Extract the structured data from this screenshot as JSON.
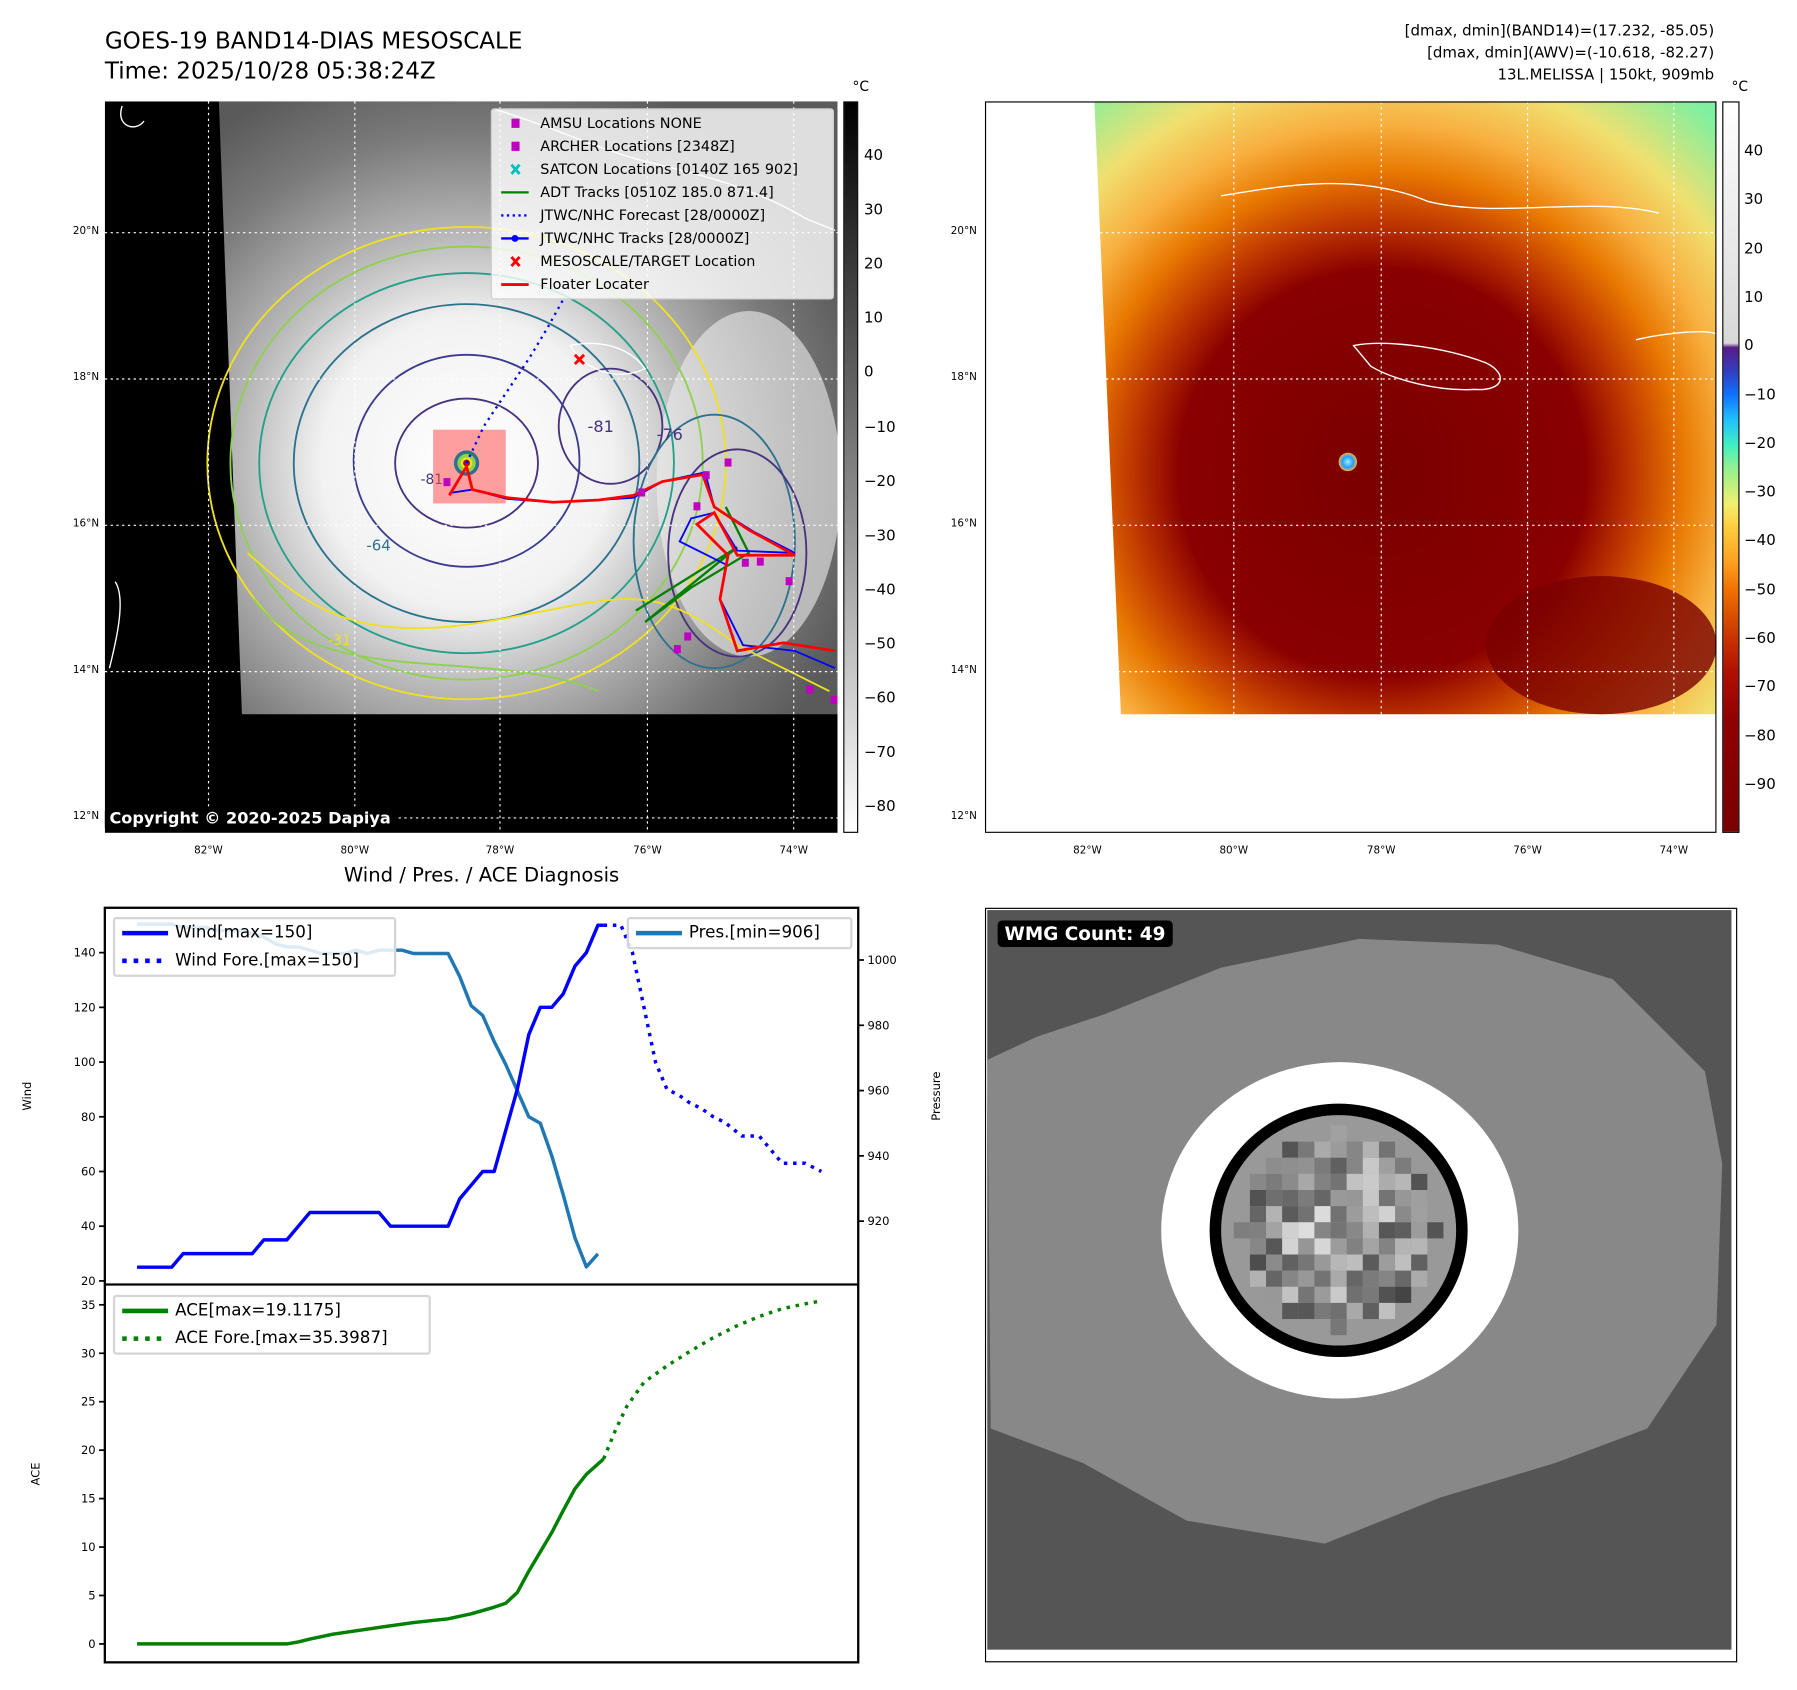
{
  "header": {
    "title": "GOES-19 BAND14-DIAS MESOSCALE",
    "time": "Time: 2025/10/28 05:38:24Z",
    "stats": [
      "[dmax, dmin](BAND14)=(17.232, -85.05)",
      "[dmax, dmin](AWV)=(-10.618, -82.27)",
      "13L.MELISSA | 150kt, 909mb"
    ]
  },
  "map_left": {
    "unit": "°C",
    "legend": [
      {
        "label": "AMSU Locations NONE",
        "marker": "square",
        "color": "#c000c0"
      },
      {
        "label": "ARCHER Locations [2348Z]",
        "marker": "square",
        "color": "#c000c0"
      },
      {
        "label": "SATCON Locations [0140Z 165 902]",
        "marker": "x",
        "color": "#00bfbf"
      },
      {
        "label": "ADT Tracks [0510Z 185.0 871.4]",
        "marker": "line",
        "color": "#008000"
      },
      {
        "label": "JTWC/NHC Forecast [28/0000Z]",
        "marker": "dotted",
        "color": "#0000ff"
      },
      {
        "label": "JTWC/NHC Tracks [28/0000Z]",
        "marker": "line-dot",
        "color": "#0000ff"
      },
      {
        "label": "MESOSCALE/TARGET Location",
        "marker": "x",
        "color": "#ff0000"
      },
      {
        "label": "Floater Locater",
        "marker": "line",
        "color": "#ff0000"
      }
    ],
    "contour_labels": [
      "-81",
      "-76",
      "-64",
      "-81",
      "-31"
    ],
    "copyright": "Copyright © 2020-2025 Dapiya",
    "lat_labels": [
      "20°N",
      "18°N",
      "16°N",
      "14°N",
      "12°N"
    ],
    "lon_labels": [
      "82°W",
      "80°W",
      "78°W",
      "76°W",
      "74°W"
    ],
    "colorbar_ticks": [
      "40",
      "30",
      "20",
      "10",
      "0",
      "−10",
      "−20",
      "−30",
      "−40",
      "−50",
      "−60",
      "−70",
      "−80"
    ]
  },
  "map_right": {
    "unit": "°C",
    "lat_labels": [
      "20°N",
      "18°N",
      "16°N",
      "14°N",
      "12°N"
    ],
    "lon_labels": [
      "82°W",
      "80°W",
      "78°W",
      "76°W",
      "74°W"
    ],
    "colorbar_ticks": [
      "40",
      "30",
      "20",
      "10",
      "0",
      "−10",
      "−20",
      "−30",
      "−40",
      "−50",
      "−60",
      "−70",
      "−80",
      "−90"
    ]
  },
  "wmg": {
    "label": "WMG Count: 49"
  },
  "colors": {
    "wind": "#0000ff",
    "pressure": "#1f77b4",
    "ace": "#008000",
    "floater": "#ff0000",
    "adt": "#008000",
    "archer": "#c000c0"
  },
  "chart_data": [
    {
      "type": "line",
      "title": "Wind / Pres. / ACE Diagnosis",
      "ylabel": "Wind",
      "y2label": "Pressure",
      "xlim": [
        -2.8,
        62.6
      ],
      "ylim": [
        18.7,
        156.4
      ],
      "y2lim": [
        900.6,
        1016
      ],
      "yticks": [
        20,
        40,
        60,
        80,
        100,
        120,
        140
      ],
      "y2ticks": [
        920,
        940,
        960,
        980,
        1000
      ],
      "legend_left": [
        "Wind[max=150]",
        "Wind Fore.[max=150]"
      ],
      "legend_right": [
        "Pres.[min=906]"
      ],
      "series": [
        {
          "name": "Wind[max=150]",
          "axis": "left",
          "style": "solid",
          "x": [
            0,
            1,
            2,
            3,
            4,
            5,
            6,
            7,
            8,
            9,
            10,
            11,
            12,
            13,
            14,
            15,
            16,
            17,
            18,
            19,
            20,
            21,
            22,
            23,
            24,
            25,
            26,
            27,
            28,
            29,
            30,
            31,
            32,
            33,
            34,
            35,
            36,
            37,
            38,
            39,
            40,
            40.5
          ],
          "y": [
            25,
            25,
            25,
            25,
            30,
            30,
            30,
            30,
            30,
            30,
            30,
            35,
            35,
            35,
            40,
            45,
            45,
            45,
            45,
            45,
            45,
            45,
            40,
            40,
            40,
            40,
            40,
            40,
            50,
            55,
            60,
            60,
            75,
            90,
            110,
            120,
            120,
            125,
            135,
            140,
            150,
            150
          ]
        },
        {
          "name": "Wind Fore.[max=150]",
          "axis": "left",
          "style": "dotted",
          "x": [
            40.5,
            42,
            43,
            44,
            45,
            46,
            47,
            48,
            49,
            50,
            51,
            52.5,
            54,
            55,
            56,
            58,
            59.4
          ],
          "y": [
            150,
            150,
            140,
            120,
            100,
            90,
            88,
            85,
            83,
            80,
            78,
            73,
            73,
            68,
            63,
            63,
            60
          ]
        },
        {
          "name": "Pres.[min=906]",
          "axis": "right",
          "style": "solid",
          "x": [
            0,
            1,
            2,
            3,
            4,
            5,
            6,
            7,
            8,
            9,
            10,
            11,
            12,
            13,
            14,
            15,
            16,
            17,
            18,
            19,
            20,
            21,
            22,
            23,
            24,
            25,
            26,
            27,
            28,
            29,
            30,
            31,
            32,
            33,
            34,
            35,
            36,
            37,
            38,
            39,
            40
          ],
          "y": [
            1011,
            1011,
            1011,
            1011,
            1010,
            1010,
            1010,
            1009,
            1009,
            1009,
            1008,
            1007,
            1005,
            1004,
            1004,
            1003,
            1002,
            1002,
            1002,
            1003,
            1002,
            1003,
            1003,
            1003,
            1002,
            1002,
            1002,
            1002,
            995,
            986,
            983,
            975,
            968,
            960,
            952,
            950,
            940,
            928,
            915,
            906,
            910
          ]
        }
      ]
    },
    {
      "type": "line",
      "ylabel": "ACE",
      "xlim": [
        -2.8,
        62.6
      ],
      "ylim": [
        -1.9,
        37.1
      ],
      "yticks": [
        0,
        5,
        10,
        15,
        20,
        25,
        30,
        35
      ],
      "legend": [
        "ACE[max=19.1175]",
        "ACE Fore.[max=35.3987]"
      ],
      "series": [
        {
          "name": "ACE[max=19.1175]",
          "style": "solid",
          "x": [
            0,
            13,
            14,
            15,
            17,
            21,
            24,
            27,
            29,
            31,
            32,
            33,
            34,
            35,
            36,
            37,
            38,
            39,
            40.5
          ],
          "y": [
            0,
            0,
            0.2,
            0.5,
            1.0,
            1.7,
            2.2,
            2.6,
            3.1,
            3.8,
            4.2,
            5.3,
            7.5,
            9.5,
            11.5,
            13.8,
            16,
            17.5,
            19.1
          ]
        },
        {
          "name": "ACE Fore.[max=35.3987]",
          "style": "dotted",
          "x": [
            40.5,
            41.5,
            42.5,
            44,
            46,
            48,
            50,
            52,
            54,
            56,
            58,
            59.4
          ],
          "y": [
            19.1,
            22,
            24.5,
            27,
            28.7,
            30.2,
            31.6,
            32.8,
            33.8,
            34.6,
            35.1,
            35.4
          ]
        }
      ]
    }
  ]
}
